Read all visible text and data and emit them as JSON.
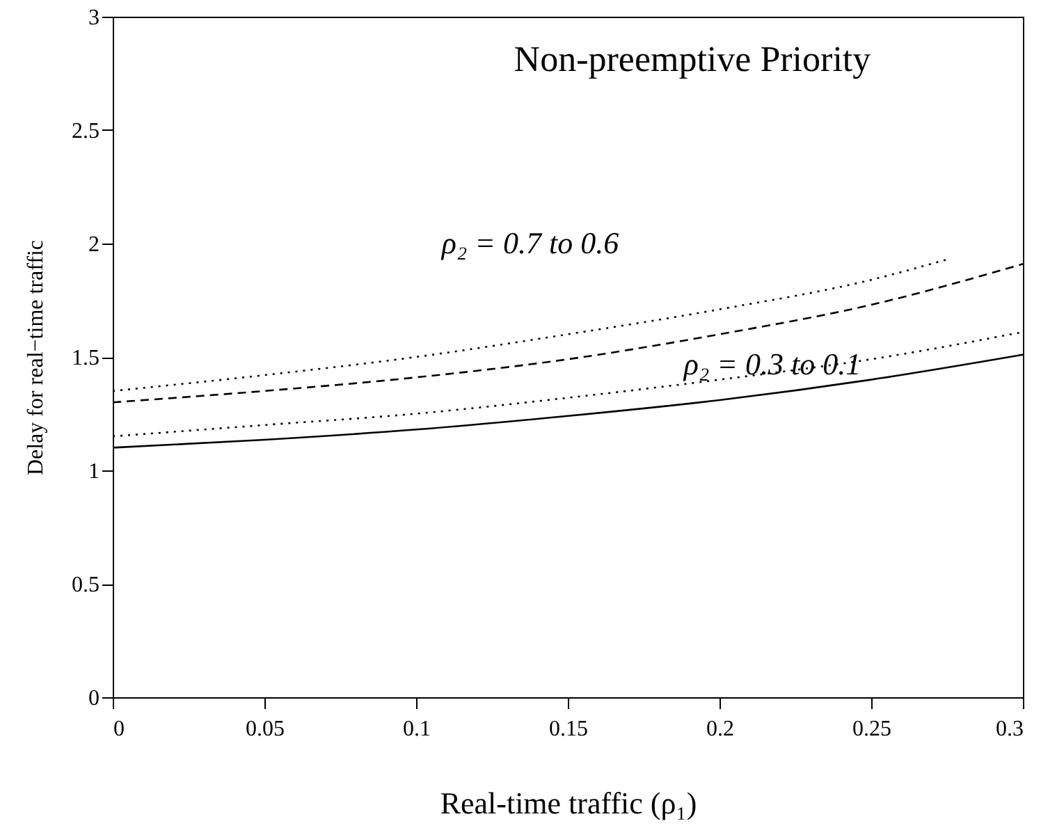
{
  "chart_data": {
    "type": "line",
    "title": "Non-preemptive Priority",
    "xlabel": "Real-time traffic (ρ₁)",
    "ylabel": "Delay for real−time traffic",
    "x": [
      0,
      0.05,
      0.1,
      0.15,
      0.2,
      0.25,
      0.3
    ],
    "series": [
      {
        "color": "#000000",
        "line_style": "dotted",
        "x": [
          0,
          0.05,
          0.1,
          0.15,
          0.2,
          0.25,
          0.275
        ],
        "values": [
          1.35,
          1.42,
          1.5,
          1.6,
          1.71,
          1.84,
          1.93
        ]
      },
      {
        "color": "#000000",
        "line_style": "dashed",
        "values": [
          1.3,
          1.35,
          1.41,
          1.49,
          1.6,
          1.73,
          1.91
        ]
      },
      {
        "color": "#000000",
        "line_style": "dotted",
        "values": [
          1.15,
          1.2,
          1.25,
          1.32,
          1.4,
          1.49,
          1.61
        ]
      },
      {
        "color": "#000000",
        "line_style": "solid",
        "values": [
          1.1,
          1.135,
          1.18,
          1.24,
          1.31,
          1.4,
          1.51
        ]
      }
    ],
    "annotations": [
      "ρ₂ = 0.7 to 0.6",
      "ρ₂ = 0.3 to  0.1"
    ],
    "xlim": [
      0,
      0.3
    ],
    "ylim": [
      0,
      3
    ],
    "xticks": [
      0,
      0.05,
      0.1,
      0.15,
      0.2,
      0.25,
      0.3
    ],
    "yticks": [
      0,
      0.5,
      1,
      1.5,
      2,
      2.5,
      3
    ],
    "grid": false,
    "legend": false,
    "marker": "none"
  }
}
